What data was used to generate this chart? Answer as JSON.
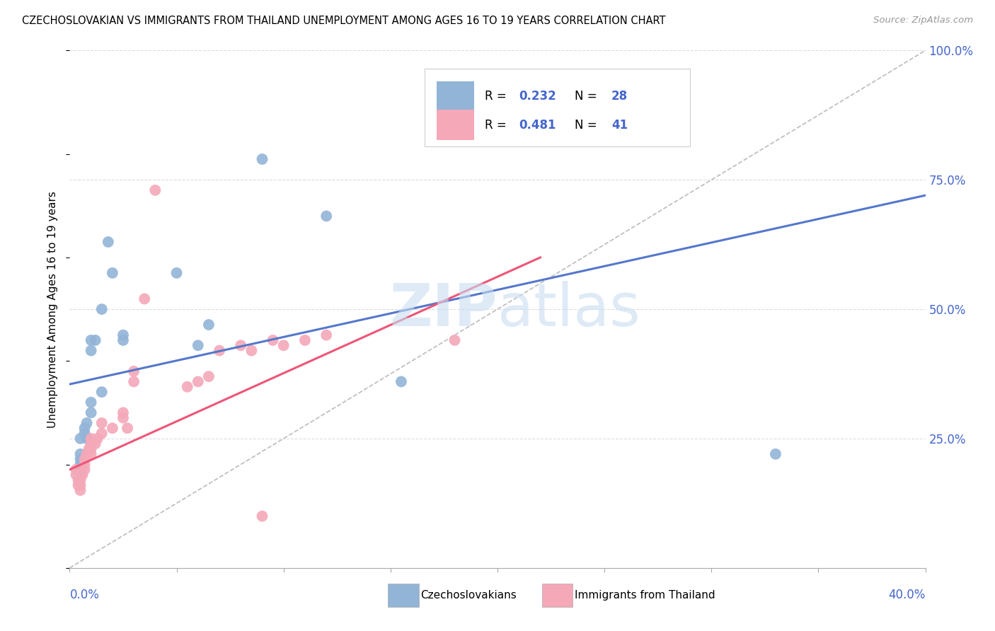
{
  "title": "CZECHOSLOVAKIAN VS IMMIGRANTS FROM THAILAND UNEMPLOYMENT AMONG AGES 16 TO 19 YEARS CORRELATION CHART",
  "source": "Source: ZipAtlas.com",
  "ylabel": "Unemployment Among Ages 16 to 19 years",
  "watermark": "ZIPatlas",
  "blue_color": "#92B4D7",
  "pink_color": "#F4A8B8",
  "blue_line_color": "#5577CC",
  "pink_line_color": "#EE5577",
  "diag_line_color": "#BBBBBB",
  "grid_color": "#DDDDDD",
  "r_n_color": "#4466CC",
  "blue_scatter_x": [
    0.005,
    0.005,
    0.005,
    0.005,
    0.005,
    0.005,
    0.007,
    0.007,
    0.008,
    0.008,
    0.01,
    0.01,
    0.01,
    0.01,
    0.012,
    0.015,
    0.015,
    0.018,
    0.02,
    0.025,
    0.025,
    0.05,
    0.06,
    0.065,
    0.09,
    0.12,
    0.155,
    0.33
  ],
  "blue_scatter_y": [
    0.18,
    0.19,
    0.2,
    0.21,
    0.22,
    0.25,
    0.26,
    0.27,
    0.25,
    0.28,
    0.3,
    0.32,
    0.42,
    0.44,
    0.44,
    0.34,
    0.5,
    0.63,
    0.57,
    0.44,
    0.45,
    0.57,
    0.43,
    0.47,
    0.79,
    0.68,
    0.36,
    0.22
  ],
  "pink_scatter_x": [
    0.003,
    0.003,
    0.004,
    0.004,
    0.005,
    0.005,
    0.005,
    0.006,
    0.007,
    0.007,
    0.007,
    0.008,
    0.009,
    0.01,
    0.01,
    0.01,
    0.01,
    0.012,
    0.013,
    0.015,
    0.015,
    0.02,
    0.025,
    0.025,
    0.027,
    0.03,
    0.03,
    0.035,
    0.04,
    0.055,
    0.06,
    0.065,
    0.07,
    0.08,
    0.085,
    0.09,
    0.095,
    0.1,
    0.11,
    0.12,
    0.18
  ],
  "pink_scatter_y": [
    0.18,
    0.19,
    0.16,
    0.17,
    0.15,
    0.16,
    0.17,
    0.18,
    0.19,
    0.2,
    0.21,
    0.22,
    0.23,
    0.22,
    0.23,
    0.24,
    0.25,
    0.24,
    0.25,
    0.26,
    0.28,
    0.27,
    0.29,
    0.3,
    0.27,
    0.36,
    0.38,
    0.52,
    0.73,
    0.35,
    0.36,
    0.37,
    0.42,
    0.43,
    0.42,
    0.1,
    0.44,
    0.43,
    0.44,
    0.45,
    0.44
  ],
  "blue_line_x0": 0.0,
  "blue_line_y0": 0.355,
  "blue_line_x1": 0.4,
  "blue_line_y1": 0.72,
  "pink_line_x0": 0.0,
  "pink_line_y0": 0.19,
  "pink_line_x1": 0.22,
  "pink_line_y1": 0.6,
  "xlim": [
    0,
    0.4
  ],
  "ylim": [
    0,
    1.0
  ],
  "yticks": [
    0.0,
    0.25,
    0.5,
    0.75,
    1.0
  ],
  "ytick_labels": [
    "",
    "25.0%",
    "50.0%",
    "75.0%",
    "100.0%"
  ],
  "xtick_positions": [
    0.0,
    0.05,
    0.1,
    0.15,
    0.2,
    0.25,
    0.3,
    0.35,
    0.4
  ],
  "figsize": [
    14.06,
    8.92
  ],
  "dpi": 100
}
